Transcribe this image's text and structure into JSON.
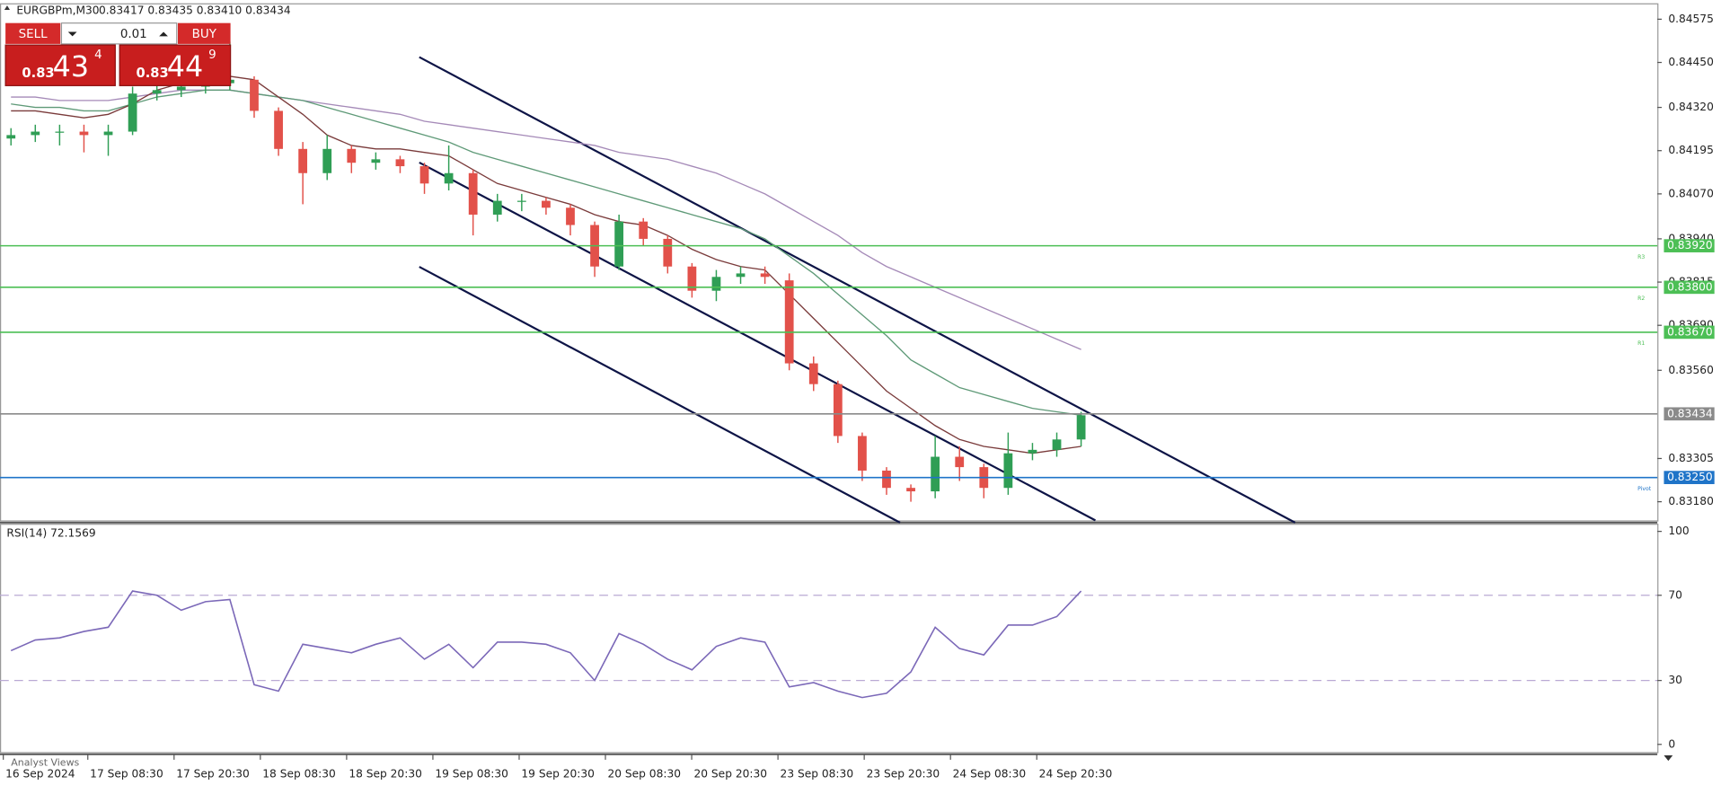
{
  "chart_data": [
    {
      "type": "candlestick",
      "title": "EURGBPm,M30",
      "ohlc_text": "0.83417 0.83435 0.83410 0.83434",
      "up_color": "#2f9e55",
      "down_color": "#e2514a",
      "open": [
        0.8423,
        0.8424,
        0.8425,
        0.8425,
        0.8424,
        0.8425,
        0.8436,
        0.8437,
        0.8438,
        0.8439,
        0.844,
        0.8431,
        0.842,
        0.8413,
        0.842,
        0.8416,
        0.8417,
        0.8415,
        0.841,
        0.8413,
        0.8401,
        0.8405,
        0.8405,
        0.8403,
        0.8398,
        0.8386,
        0.8399,
        0.8394,
        0.8386,
        0.8379,
        0.8383,
        0.8384,
        0.8382,
        0.8358,
        0.8352,
        0.8337,
        0.8327,
        0.8322,
        0.8321,
        0.8331,
        0.8328,
        0.8322,
        0.8332,
        0.8333,
        0.8336
      ],
      "high": [
        0.8426,
        0.8427,
        0.8427,
        0.8427,
        0.8427,
        0.8438,
        0.8439,
        0.844,
        0.8441,
        0.8451,
        0.8441,
        0.8432,
        0.8422,
        0.8424,
        0.8421,
        0.8419,
        0.8418,
        0.8416,
        0.8421,
        0.8414,
        0.8407,
        0.8407,
        0.8406,
        0.8404,
        0.8399,
        0.8401,
        0.84,
        0.8395,
        0.8387,
        0.8385,
        0.8386,
        0.8386,
        0.8384,
        0.836,
        0.8353,
        0.8338,
        0.8328,
        0.8323,
        0.8337,
        0.8334,
        0.8329,
        0.8338,
        0.8335,
        0.8338,
        0.8344
      ],
      "low": [
        0.8421,
        0.8422,
        0.8421,
        0.8419,
        0.8418,
        0.8424,
        0.8434,
        0.8435,
        0.8436,
        0.8437,
        0.8429,
        0.8418,
        0.8404,
        0.8411,
        0.8413,
        0.8414,
        0.8413,
        0.8407,
        0.8408,
        0.8395,
        0.8399,
        0.8402,
        0.8401,
        0.8395,
        0.8383,
        0.8385,
        0.8392,
        0.8384,
        0.8377,
        0.8376,
        0.8381,
        0.8381,
        0.8356,
        0.835,
        0.8335,
        0.8324,
        0.832,
        0.8318,
        0.8319,
        0.8324,
        0.8319,
        0.832,
        0.833,
        0.8331,
        0.8334
      ],
      "close": [
        0.8424,
        0.8425,
        0.8425,
        0.8424,
        0.8425,
        0.8436,
        0.8437,
        0.8438,
        0.8439,
        0.844,
        0.8431,
        0.842,
        0.8413,
        0.842,
        0.8416,
        0.8417,
        0.8415,
        0.841,
        0.8413,
        0.8401,
        0.8405,
        0.8405,
        0.8403,
        0.8398,
        0.8386,
        0.8399,
        0.8394,
        0.8386,
        0.8379,
        0.8383,
        0.8384,
        0.8383,
        0.8358,
        0.8352,
        0.8337,
        0.8327,
        0.8322,
        0.8321,
        0.8331,
        0.8328,
        0.8322,
        0.8332,
        0.8333,
        0.8336,
        0.8343
      ],
      "moving_averages": [
        {
          "color": "#a58ab8",
          "values": [
            0.8435,
            0.8435,
            0.8434,
            0.8434,
            0.8434,
            0.8435,
            0.8436,
            0.8437,
            0.8437,
            0.8437,
            0.8436,
            0.8435,
            0.8434,
            0.8433,
            0.8432,
            0.8431,
            0.843,
            0.8428,
            0.8427,
            0.8426,
            0.8425,
            0.8424,
            0.8423,
            0.8422,
            0.8421,
            0.8419,
            0.8418,
            0.8417,
            0.8415,
            0.8413,
            0.841,
            0.8407,
            0.8403,
            0.8399,
            0.8395,
            0.839,
            0.8386,
            0.8383,
            0.838,
            0.8377,
            0.8374,
            0.8371,
            0.8368,
            0.8365,
            0.8362
          ]
        },
        {
          "color": "#5f9a78",
          "values": [
            0.8433,
            0.8432,
            0.8432,
            0.8431,
            0.8431,
            0.8433,
            0.8435,
            0.8436,
            0.8437,
            0.8437,
            0.8436,
            0.8435,
            0.8434,
            0.8432,
            0.843,
            0.8428,
            0.8426,
            0.8424,
            0.8422,
            0.8419,
            0.8417,
            0.8415,
            0.8413,
            0.8411,
            0.8409,
            0.8407,
            0.8405,
            0.8403,
            0.8401,
            0.8399,
            0.8397,
            0.8394,
            0.8389,
            0.8384,
            0.8378,
            0.8372,
            0.8366,
            0.8359,
            0.8355,
            0.8351,
            0.8349,
            0.8347,
            0.8345,
            0.8344,
            0.8343
          ]
        },
        {
          "color": "#7a3b3b",
          "values": [
            0.8431,
            0.8431,
            0.843,
            0.8429,
            0.843,
            0.8433,
            0.8437,
            0.8439,
            0.844,
            0.8441,
            0.844,
            0.8435,
            0.843,
            0.8424,
            0.8421,
            0.842,
            0.842,
            0.8419,
            0.8418,
            0.8414,
            0.841,
            0.8408,
            0.8406,
            0.8404,
            0.8401,
            0.8399,
            0.8398,
            0.8395,
            0.8391,
            0.8388,
            0.8386,
            0.8385,
            0.8378,
            0.8371,
            0.8364,
            0.8357,
            0.835,
            0.8345,
            0.834,
            0.8336,
            0.8334,
            0.8333,
            0.8332,
            0.8333,
            0.8334
          ]
        }
      ],
      "ylim": [
        0.83126,
        0.84621
      ],
      "yticks": [
        0.84575,
        {
          "value": 0.8445,
          "label": "0.84450"
        },
        {
          "value": 0.8432,
          "label": "0.84320"
        },
        0.84195,
        {
          "value": 0.8407,
          "label": "0.84070"
        },
        {
          "value": 0.8394,
          "label": "0.83940"
        },
        0.83815,
        {
          "value": 0.8369,
          "label": "0.83690"
        },
        {
          "value": 0.8356,
          "label": "0.83560"
        },
        0.83305,
        {
          "value": 0.8318,
          "label": "0.83180"
        }
      ],
      "levels": [
        {
          "name": "R3",
          "value": 0.8392,
          "label": "0.83920",
          "color": "#4cbf55"
        },
        {
          "name": "R2",
          "value": 0.838,
          "label": "0.83800",
          "color": "#4cbf55"
        },
        {
          "name": "R1",
          "value": 0.8367,
          "label": "0.83670",
          "color": "#4cbf55"
        },
        {
          "name": "Pivot",
          "value": 0.8325,
          "label": "0.83250",
          "color": "#1f74c8"
        }
      ],
      "current_price": {
        "value": 0.83434,
        "label": "0.83434",
        "color": "#8a8a8a"
      }
    },
    {
      "type": "line",
      "title": "RSI(14) 72.1569",
      "color": "#7b68b8",
      "values": [
        44,
        49,
        50,
        53,
        55,
        72,
        70,
        63,
        67,
        68,
        28,
        25,
        47,
        45,
        43,
        47,
        50,
        40,
        47,
        36,
        48,
        48,
        47,
        43,
        30,
        52,
        47,
        40,
        35,
        46,
        50,
        48,
        27,
        29,
        25,
        22,
        24,
        34,
        55,
        45,
        42,
        56,
        56,
        60,
        72
      ],
      "ylim": [
        0,
        100
      ],
      "yticks": [
        100,
        70,
        30,
        0
      ],
      "levels": [
        70,
        30
      ],
      "x_labels": [
        "16 Sep 2024",
        "17 Sep 08:30",
        "17 Sep 20:30",
        "18 Sep 08:30",
        "18 Sep 20:30",
        "19 Sep 08:30",
        "19 Sep 20:30",
        "20 Sep 08:30",
        "20 Sep 20:30",
        "23 Sep 08:30",
        "23 Sep 20:30",
        "24 Sep 08:30",
        "24 Sep 20:30"
      ]
    }
  ],
  "trade_panel": {
    "sell": "SELL",
    "lot": "0.01",
    "buy": "BUY",
    "bid": {
      "big": "0.83",
      "main": "43",
      "pip": "4"
    },
    "ask": {
      "big": "0.83",
      "main": "44",
      "pip": "9"
    }
  },
  "footer_tab": "Analyst Views"
}
